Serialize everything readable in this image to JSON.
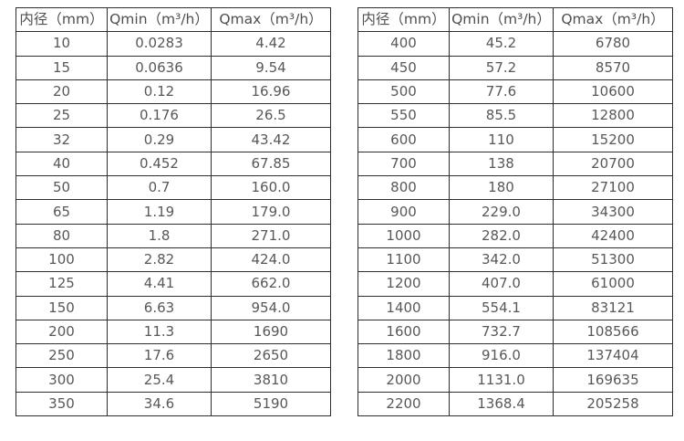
{
  "page": {
    "background_color": "#ffffff",
    "text_color": "#585858",
    "border_color": "#2e2e2e"
  },
  "tables": [
    {
      "name": "flow-table-small-diameters",
      "headers": [
        "内径（mm）",
        "Qmin（m³/h）",
        "Qmax（m³/h）"
      ],
      "rows": [
        [
          "10",
          "0.0283",
          "4.42"
        ],
        [
          "15",
          "0.0636",
          "9.54"
        ],
        [
          "20",
          "0.12",
          "16.96"
        ],
        [
          "25",
          "0.176",
          "26.5"
        ],
        [
          "32",
          "0.29",
          "43.42"
        ],
        [
          "40",
          "0.452",
          "67.85"
        ],
        [
          "50",
          "0.7",
          "160.0"
        ],
        [
          "65",
          "1.19",
          "179.0"
        ],
        [
          "80",
          "1.8",
          "271.0"
        ],
        [
          "100",
          "2.82",
          "424.0"
        ],
        [
          "125",
          "4.41",
          "662.0"
        ],
        [
          "150",
          "6.63",
          "954.0"
        ],
        [
          "200",
          "11.3",
          "1690"
        ],
        [
          "250",
          "17.6",
          "2650"
        ],
        [
          "300",
          "25.4",
          "3810"
        ],
        [
          "350",
          "34.6",
          "5190"
        ]
      ]
    },
    {
      "name": "flow-table-large-diameters",
      "headers": [
        "内径（mm）",
        "Qmin（m³/h）",
        "Qmax（m³/h）"
      ],
      "rows": [
        [
          "400",
          "45.2",
          "6780"
        ],
        [
          "450",
          "57.2",
          "8570"
        ],
        [
          "500",
          "77.6",
          "10600"
        ],
        [
          "550",
          "85.5",
          "12800"
        ],
        [
          "600",
          "110",
          "15200"
        ],
        [
          "700",
          "138",
          "20700"
        ],
        [
          "800",
          "180",
          "27100"
        ],
        [
          "900",
          "229.0",
          "34300"
        ],
        [
          "1000",
          "282.0",
          "42400"
        ],
        [
          "1100",
          "342.0",
          "51300"
        ],
        [
          "1200",
          "407.0",
          "61000"
        ],
        [
          "1400",
          "554.1",
          "83121"
        ],
        [
          "1600",
          "732.7",
          "108566"
        ],
        [
          "1800",
          "916.0",
          "137404"
        ],
        [
          "2000",
          "1131.0",
          "169635"
        ],
        [
          "2200",
          "1368.4",
          "205258"
        ]
      ]
    }
  ]
}
